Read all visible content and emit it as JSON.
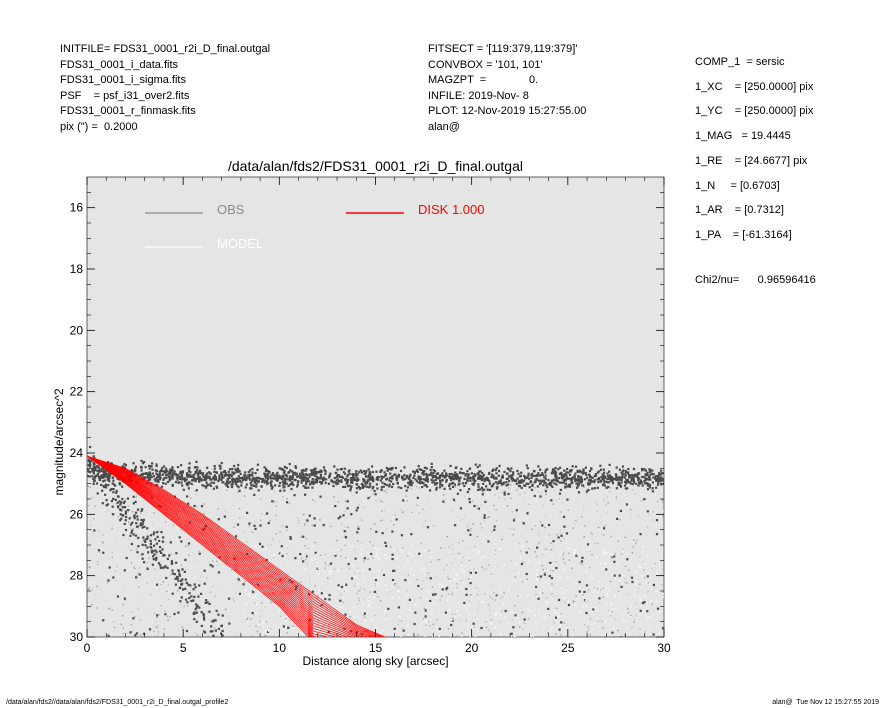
{
  "header_left": [
    "INITFILE= FDS31_0001_r2i_D_final.outgal",
    "FDS31_0001_i_data.fits",
    "FDS31_0001_i_sigma.fits",
    "PSF    = psf_i31_over2.fits",
    "FDS31_0001_r_finmask.fits",
    "pix (\") =  0.2000"
  ],
  "header_mid": [
    "FITSECT = '[119:379,119:379]'",
    "CONVBOX = '101, 101'",
    "MAGZPT  =              0.",
    "INFILE: 2019-Nov- 8",
    "PLOT: 12-Nov-2019 15:27:55.00",
    "alan@"
  ],
  "header_right": [
    "COMP_1  = sersic",
    "1_XC    = [250.0000] pix",
    "1_YC    = [250.0000] pix",
    "1_MAG   = 19.4445",
    "1_RE    = [24.6677] pix",
    "1_N     = [0.6703]",
    "1_AR    = [0.7312]",
    "1_PA    = [-61.3164]"
  ],
  "chi2": "Chi2/nu=      0.96596416",
  "footer_left": "/data/alan/fds2//data/alan/fds2/FDS31_0001_r2i_D_final.outgal_profile2",
  "footer_right": "alan@  Tue Nov 12 15:27:55 2019",
  "colors": {
    "plot_bg": "#e5e5e5",
    "obs": "#4a4a4a",
    "obs_light": "#8c8c8c",
    "model": "#ffffff",
    "disk": "#ff0000"
  },
  "chart_data": {
    "type": "scatter",
    "title": "/data/alan/fds2/FDS31_0001_r2i_D_final.outgal",
    "xlabel": "Distance along sky [arcsec]",
    "ylabel": "magnitude/arcsec^2",
    "xlim": [
      0,
      30
    ],
    "ylim": [
      30,
      15
    ],
    "x_ticks": [
      "0",
      "5",
      "10",
      "15",
      "20",
      "25",
      "30"
    ],
    "y_ticks": [
      "16",
      "18",
      "20",
      "22",
      "24",
      "26",
      "28",
      "30"
    ],
    "grid": false,
    "legend": [
      {
        "name": "OBS",
        "color": "#8c8c8c"
      },
      {
        "name": "MODEL",
        "color": "#ffffff"
      },
      {
        "name": "DISK  1.000",
        "color": "#ff0000"
      }
    ],
    "series": [
      {
        "name": "OBS",
        "description_points": [
          [
            0.5,
            23.8
          ],
          [
            5,
            24.5
          ],
          [
            10,
            24.8
          ],
          [
            15,
            24.9
          ],
          [
            20,
            24.9
          ],
          [
            25,
            25.0
          ],
          [
            30,
            25.0
          ]
        ]
      },
      {
        "name": "MODEL",
        "points": [
          [
            0,
            24.1
          ],
          [
            2,
            24.8
          ],
          [
            4,
            25.7
          ],
          [
            6,
            26.7
          ],
          [
            8,
            27.6
          ],
          [
            10,
            28.5
          ],
          [
            12,
            29.3
          ],
          [
            14,
            30.0
          ]
        ]
      },
      {
        "name": "DISK  1.000",
        "inner": [
          [
            0,
            24.1
          ],
          [
            2,
            24.5
          ],
          [
            4,
            25.2
          ],
          [
            6,
            26.0
          ],
          [
            8,
            26.9
          ],
          [
            10,
            27.8
          ],
          [
            12,
            28.7
          ],
          [
            14,
            29.6
          ],
          [
            15.5,
            30.0
          ]
        ],
        "outer": [
          [
            0,
            24.1
          ],
          [
            2,
            25.0
          ],
          [
            4,
            26.0
          ],
          [
            6,
            27.0
          ],
          [
            8,
            28.0
          ],
          [
            10,
            29.0
          ],
          [
            11.5,
            30.0
          ]
        ]
      }
    ]
  }
}
